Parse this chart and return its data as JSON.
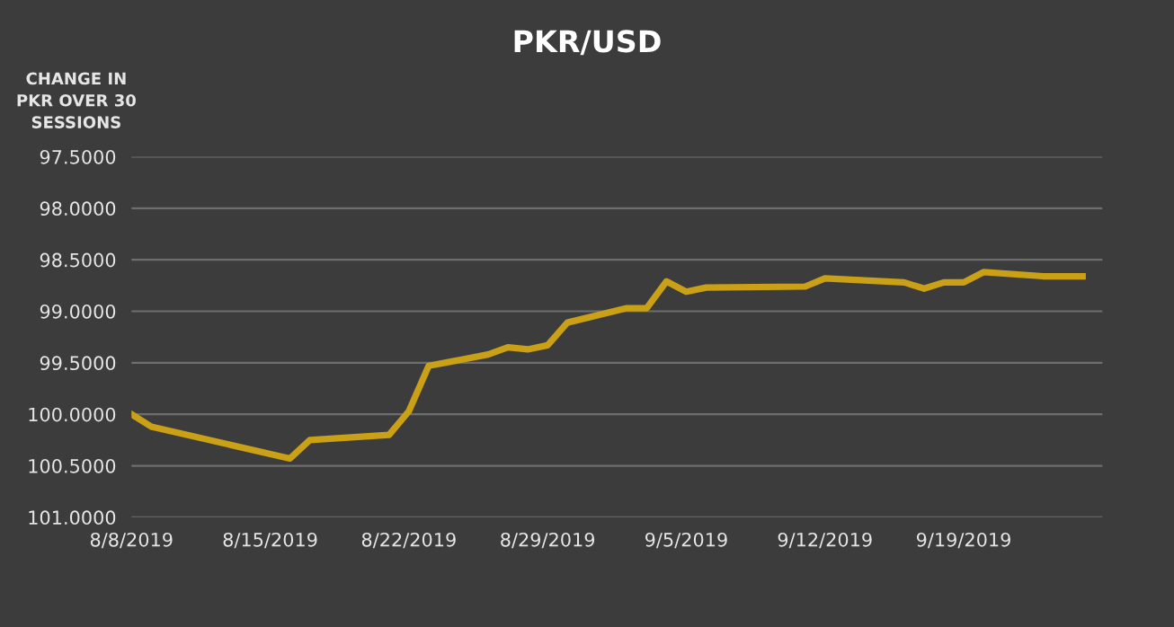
{
  "chart_data": {
    "type": "line",
    "title": "PKR/USD",
    "ylabel": "CHANGE IN\nPKR OVER 30\nSESSIONS",
    "x": [
      "2019-08-08",
      "2019-08-09",
      "2019-08-16",
      "2019-08-17",
      "2019-08-21",
      "2019-08-22",
      "2019-08-23",
      "2019-08-26",
      "2019-08-27",
      "2019-08-28",
      "2019-08-29",
      "2019-08-30",
      "2019-09-02",
      "2019-09-03",
      "2019-09-04",
      "2019-09-05",
      "2019-09-06",
      "2019-09-11",
      "2019-09-12",
      "2019-09-16",
      "2019-09-17",
      "2019-09-18",
      "2019-09-19",
      "2019-09-20",
      "2019-09-23",
      "2019-09-25"
    ],
    "series": [
      {
        "color": "#c9a016",
        "values": [
          100.0,
          100.12,
          100.43,
          100.25,
          100.2,
          99.97,
          99.53,
          99.42,
          99.35,
          99.37,
          99.33,
          99.11,
          98.97,
          98.97,
          98.71,
          98.81,
          98.77,
          98.76,
          98.68,
          98.72,
          98.78,
          98.72,
          98.72,
          98.62,
          98.66,
          98.66
        ]
      }
    ],
    "ylim": [
      101.0,
      97.5
    ],
    "yticks": [
      {
        "value": 97.5,
        "label": "97.5000"
      },
      {
        "value": 98.0,
        "label": "98.0000"
      },
      {
        "value": 98.5,
        "label": "98.5000"
      },
      {
        "value": 99.0,
        "label": "99.0000"
      },
      {
        "value": 99.5,
        "label": "99.5000"
      },
      {
        "value": 100.0,
        "label": "100.0000"
      },
      {
        "value": 100.5,
        "label": "100.5000"
      },
      {
        "value": 101.0,
        "label": "101.0000"
      }
    ],
    "xlim": [
      "2019-08-08",
      "2019-09-26"
    ],
    "xticks": [
      {
        "value": "2019-08-08",
        "label": "8/8/2019"
      },
      {
        "value": "2019-08-15",
        "label": "8/15/2019"
      },
      {
        "value": "2019-08-22",
        "label": "8/22/2019"
      },
      {
        "value": "2019-08-29",
        "label": "8/29/2019"
      },
      {
        "value": "2019-09-05",
        "label": "9/5/2019"
      },
      {
        "value": "2019-09-12",
        "label": "9/12/2019"
      },
      {
        "value": "2019-09-19",
        "label": "9/19/2019"
      }
    ],
    "grid": "y",
    "marker": "none",
    "line_style": "solid"
  }
}
